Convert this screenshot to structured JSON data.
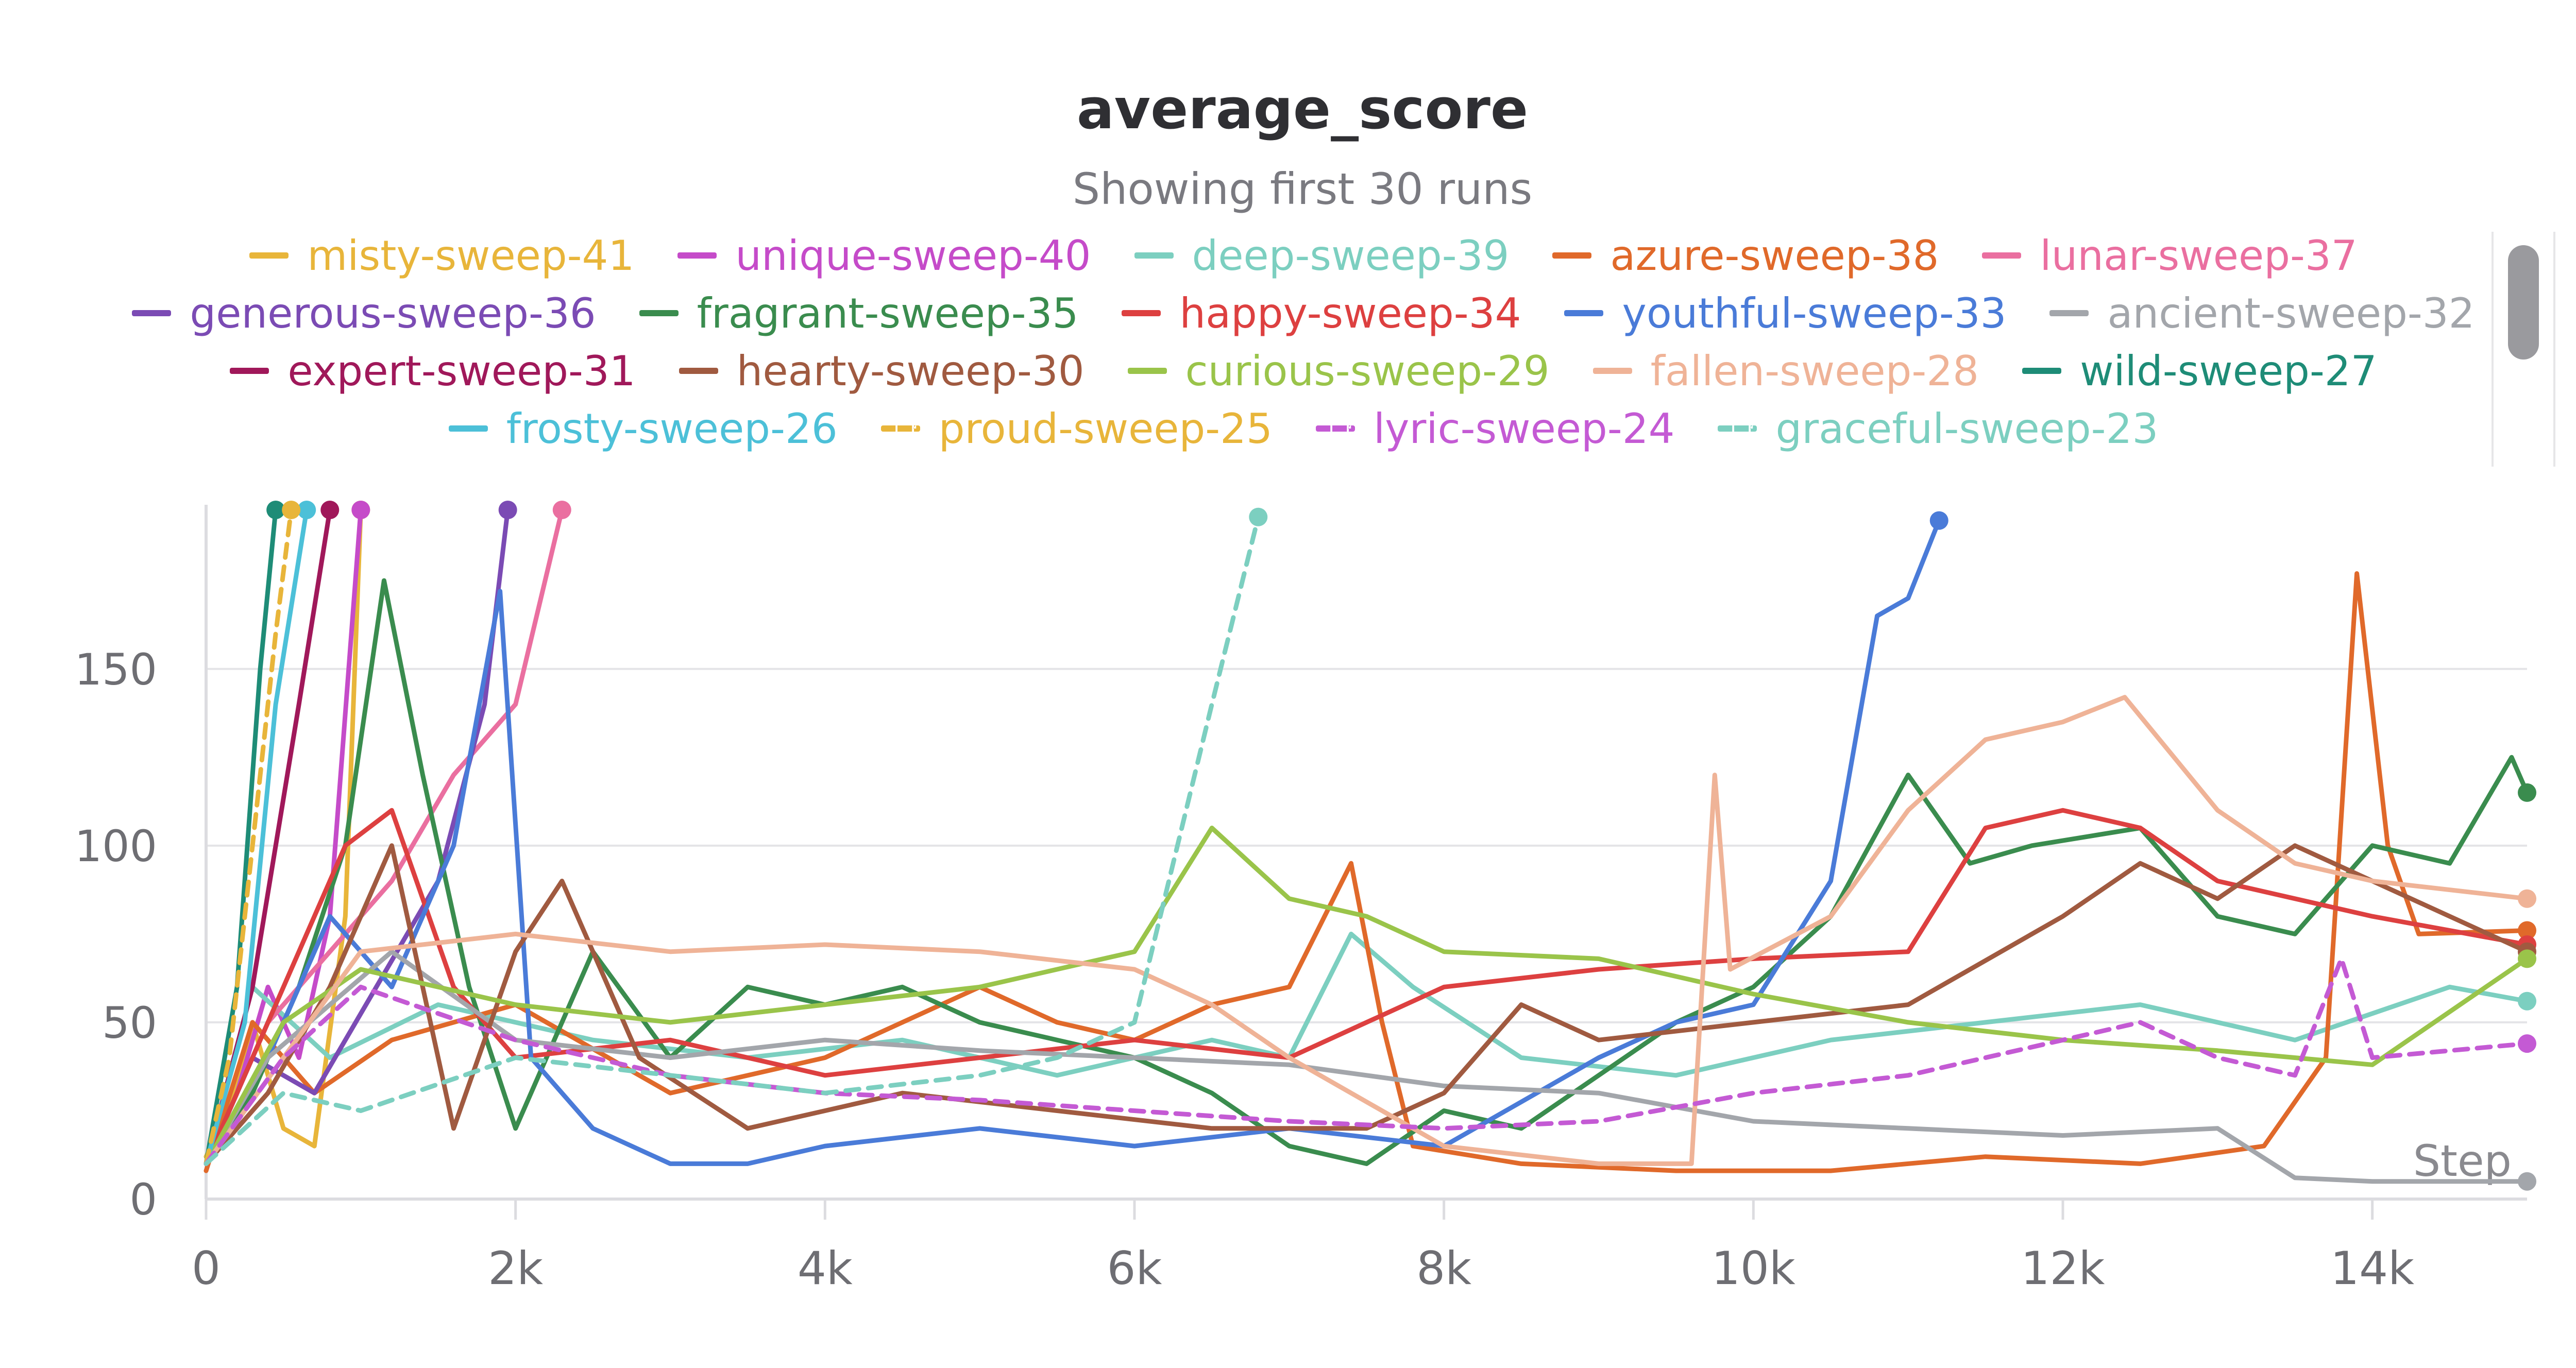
{
  "chart_data": {
    "type": "line",
    "title": "average_score",
    "subtitle": "Showing first 30 runs",
    "xlabel": "Step",
    "ylabel": "",
    "xlim": [
      0,
      15000
    ],
    "ylim": [
      0,
      195
    ],
    "xticks": [
      0,
      2000,
      4000,
      6000,
      8000,
      10000,
      12000,
      14000
    ],
    "xtick_labels": [
      "0",
      "2k",
      "4k",
      "6k",
      "8k",
      "10k",
      "12k",
      "14k"
    ],
    "yticks": [
      0,
      50,
      100,
      150
    ],
    "ytick_labels": [
      "0",
      "50",
      "100",
      "150"
    ],
    "grid": true,
    "legend_position": "top",
    "series": [
      {
        "name": "misty-sweep-41",
        "color": "#e8b53a",
        "dash": false,
        "x": [
          0,
          150,
          300,
          500,
          700,
          900,
          1000
        ],
        "y": [
          12,
          25,
          50,
          20,
          15,
          80,
          195
        ]
      },
      {
        "name": "unique-sweep-40",
        "color": "#c54bc9",
        "dash": false,
        "x": [
          0,
          200,
          400,
          600,
          800,
          1000
        ],
        "y": [
          10,
          30,
          60,
          40,
          80,
          195
        ]
      },
      {
        "name": "deep-sweep-39",
        "color": "#7ccfc0",
        "dash": false,
        "x": [
          0,
          300,
          800,
          1500,
          2500,
          3500,
          4500,
          5500,
          6500,
          7000,
          7400,
          7800,
          8500,
          9500,
          10500,
          11500,
          12500,
          13500,
          14500,
          15000
        ],
        "y": [
          10,
          60,
          40,
          55,
          45,
          40,
          45,
          35,
          45,
          40,
          75,
          60,
          40,
          35,
          45,
          50,
          55,
          45,
          60,
          56
        ]
      },
      {
        "name": "azure-sweep-38",
        "color": "#e0692a",
        "dash": false,
        "x": [
          0,
          300,
          700,
          1200,
          2000,
          3000,
          4000,
          5000,
          5500,
          6000,
          6500,
          7000,
          7400,
          7600,
          7800,
          8500,
          9500,
          10500,
          11500,
          12500,
          13300,
          13700,
          13900,
          14100,
          14300,
          15000
        ],
        "y": [
          8,
          50,
          30,
          45,
          55,
          30,
          40,
          60,
          50,
          45,
          55,
          60,
          95,
          50,
          15,
          10,
          8,
          8,
          12,
          10,
          15,
          40,
          177,
          100,
          75,
          76
        ]
      },
      {
        "name": "lunar-sweep-37",
        "color": "#ea6fa0",
        "dash": false,
        "x": [
          0,
          400,
          800,
          1200,
          1600,
          2000,
          2300
        ],
        "y": [
          10,
          50,
          70,
          90,
          120,
          140,
          195
        ]
      },
      {
        "name": "generous-sweep-36",
        "color": "#7b4bb4",
        "dash": false,
        "x": [
          0,
          300,
          700,
          1100,
          1500,
          1800,
          1950
        ],
        "y": [
          10,
          40,
          30,
          60,
          90,
          140,
          195
        ]
      },
      {
        "name": "fragrant-sweep-35",
        "color": "#3a8c4e",
        "dash": false,
        "x": [
          0,
          300,
          600,
          900,
          1150,
          1400,
          1700,
          2000,
          2500,
          3000,
          3500,
          4000,
          4500,
          5000,
          5500,
          6000,
          6500,
          7000,
          7500,
          8000,
          8500,
          9000,
          9500,
          10000,
          10500,
          11000,
          11400,
          11800,
          12500,
          13000,
          13500,
          14000,
          14500,
          14900,
          15000
        ],
        "y": [
          10,
          30,
          60,
          100,
          175,
          120,
          60,
          20,
          70,
          40,
          60,
          55,
          60,
          50,
          45,
          40,
          30,
          15,
          10,
          25,
          20,
          35,
          50,
          60,
          80,
          120,
          95,
          100,
          105,
          80,
          75,
          100,
          95,
          125,
          115
        ]
      },
      {
        "name": "happy-sweep-34",
        "color": "#dd4040",
        "dash": false,
        "x": [
          0,
          300,
          600,
          900,
          1200,
          1600,
          2000,
          3000,
          4000,
          5000,
          6000,
          7000,
          7500,
          8000,
          9000,
          10000,
          11000,
          11500,
          12000,
          12500,
          13000,
          14000,
          15000
        ],
        "y": [
          10,
          40,
          70,
          100,
          110,
          60,
          40,
          45,
          35,
          40,
          45,
          40,
          50,
          60,
          65,
          68,
          70,
          105,
          110,
          105,
          90,
          80,
          72
        ]
      },
      {
        "name": "youthful-sweep-33",
        "color": "#4a7bd8",
        "dash": false,
        "x": [
          0,
          400,
          800,
          1200,
          1600,
          1900,
          2100,
          2500,
          3000,
          3500,
          4000,
          5000,
          6000,
          7000,
          8000,
          9000,
          9500,
          10000,
          10500,
          10800,
          11000,
          11200
        ],
        "y": [
          10,
          40,
          80,
          60,
          100,
          172,
          40,
          20,
          10,
          10,
          15,
          20,
          15,
          20,
          15,
          40,
          50,
          55,
          90,
          165,
          170,
          192
        ]
      },
      {
        "name": "ancient-sweep-32",
        "color": "#a3a6ab",
        "dash": false,
        "x": [
          0,
          400,
          800,
          1200,
          2000,
          3000,
          4000,
          5000,
          6000,
          7000,
          8000,
          9000,
          10000,
          11000,
          12000,
          13000,
          13500,
          14000,
          15000
        ],
        "y": [
          10,
          40,
          55,
          70,
          45,
          40,
          45,
          42,
          40,
          38,
          32,
          30,
          22,
          20,
          18,
          20,
          6,
          5,
          5
        ]
      },
      {
        "name": "expert-sweep-31",
        "color": "#a0185a",
        "dash": false,
        "x": [
          0,
          300,
          600,
          800
        ],
        "y": [
          10,
          60,
          140,
          195
        ]
      },
      {
        "name": "hearty-sweep-30",
        "color": "#a05a40",
        "dash": false,
        "x": [
          0,
          400,
          800,
          1200,
          1600,
          2000,
          2300,
          2800,
          3500,
          4500,
          5500,
          6500,
          7500,
          8000,
          8500,
          9000,
          10000,
          11000,
          12000,
          12500,
          13000,
          13500,
          14000,
          15000
        ],
        "y": [
          10,
          30,
          60,
          100,
          20,
          70,
          90,
          40,
          20,
          30,
          25,
          20,
          20,
          30,
          55,
          45,
          50,
          55,
          80,
          95,
          85,
          100,
          90,
          70
        ]
      },
      {
        "name": "curious-sweep-29",
        "color": "#9ac44a",
        "dash": false,
        "x": [
          0,
          500,
          1000,
          2000,
          3000,
          4000,
          5000,
          6000,
          6500,
          7000,
          7500,
          8000,
          9000,
          10000,
          11000,
          12000,
          13000,
          14000,
          15000
        ],
        "y": [
          10,
          50,
          65,
          55,
          50,
          55,
          60,
          70,
          105,
          85,
          80,
          70,
          68,
          58,
          50,
          45,
          42,
          38,
          68
        ]
      },
      {
        "name": "fallen-sweep-28",
        "color": "#efb397",
        "dash": false,
        "x": [
          0,
          500,
          1000,
          2000,
          3000,
          4000,
          5000,
          6000,
          6500,
          7000,
          8000,
          9000,
          9600,
          9750,
          9850,
          10500,
          11000,
          11500,
          12000,
          12400,
          13000,
          13500,
          14000,
          15000
        ],
        "y": [
          10,
          40,
          70,
          75,
          70,
          72,
          70,
          65,
          55,
          40,
          15,
          10,
          10,
          120,
          65,
          80,
          110,
          130,
          135,
          142,
          110,
          95,
          90,
          85
        ]
      },
      {
        "name": "wild-sweep-27",
        "color": "#1e8c77",
        "dash": false,
        "x": [
          0,
          200,
          350,
          450
        ],
        "y": [
          10,
          60,
          150,
          195
        ]
      },
      {
        "name": "frosty-sweep-26",
        "color": "#4cc0d8",
        "dash": false,
        "x": [
          0,
          250,
          450,
          650
        ],
        "y": [
          10,
          50,
          140,
          195
        ]
      },
      {
        "name": "proud-sweep-25",
        "color": "#e8b53a",
        "dash": true,
        "x": [
          0,
          150,
          300,
          450,
          550
        ],
        "y": [
          10,
          40,
          100,
          160,
          195
        ]
      },
      {
        "name": "lyric-sweep-24",
        "color": "#c45ad4",
        "dash": true,
        "x": [
          0,
          500,
          1000,
          2000,
          3000,
          4000,
          5000,
          6000,
          7000,
          8000,
          9000,
          10000,
          11000,
          12000,
          12500,
          13000,
          13500,
          13800,
          14000,
          15000
        ],
        "y": [
          10,
          40,
          60,
          45,
          35,
          30,
          28,
          25,
          22,
          20,
          22,
          30,
          35,
          45,
          50,
          40,
          35,
          68,
          40,
          44
        ]
      },
      {
        "name": "graceful-sweep-23",
        "color": "#7ccfc0",
        "dash": true,
        "x": [
          0,
          500,
          1000,
          2000,
          3000,
          4000,
          5000,
          5500,
          6000,
          6500,
          6800
        ],
        "y": [
          10,
          30,
          25,
          40,
          35,
          30,
          35,
          40,
          50,
          140,
          193
        ]
      }
    ]
  }
}
